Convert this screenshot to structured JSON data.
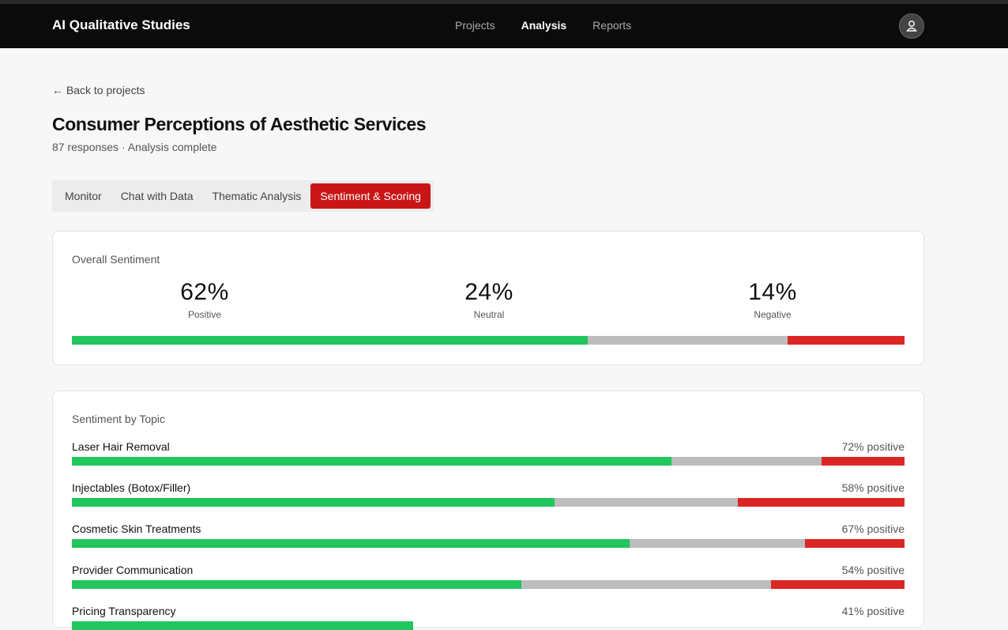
{
  "nav": {
    "brand": "AI Qualitative Studies",
    "links": [
      "Projects",
      "Analysis",
      "Reports"
    ],
    "active": 1
  },
  "back_link": "← Back to projects",
  "header": {
    "title": "Consumer Perceptions of Aesthetic Services",
    "subtitle": "87 responses · Analysis complete"
  },
  "tabs": {
    "items": [
      "Monitor",
      "Chat with Data",
      "Thematic Analysis",
      "Sentiment & Scoring"
    ],
    "active": 3
  },
  "overall": {
    "title": "Overall Sentiment",
    "items": [
      {
        "value": 62,
        "label": "62%",
        "caption": "Positive",
        "color": "#22c55e"
      },
      {
        "value": 24,
        "label": "24%",
        "caption": "Neutral",
        "color": "#bdbdbd"
      },
      {
        "value": 14,
        "label": "14%",
        "caption": "Negative",
        "color": "#dc2626"
      }
    ]
  },
  "by_topic": {
    "title": "Sentiment by Topic",
    "topics": [
      {
        "name": "Laser Hair Removal",
        "positive": 72,
        "neutral": 18,
        "negative": 10,
        "positive_label": "72% positive"
      },
      {
        "name": "Injectables (Botox/Filler)",
        "positive": 58,
        "neutral": 22,
        "negative": 20,
        "positive_label": "58% positive"
      },
      {
        "name": "Cosmetic Skin Treatments",
        "positive": 67,
        "neutral": 21,
        "negative": 12,
        "positive_label": "67% positive"
      },
      {
        "name": "Provider Communication",
        "positive": 54,
        "neutral": 30,
        "negative": 16,
        "positive_label": "54% positive"
      },
      {
        "name": "Pricing Transparency",
        "positive": 41,
        "positive_label": "41% positive"
      }
    ]
  }
}
